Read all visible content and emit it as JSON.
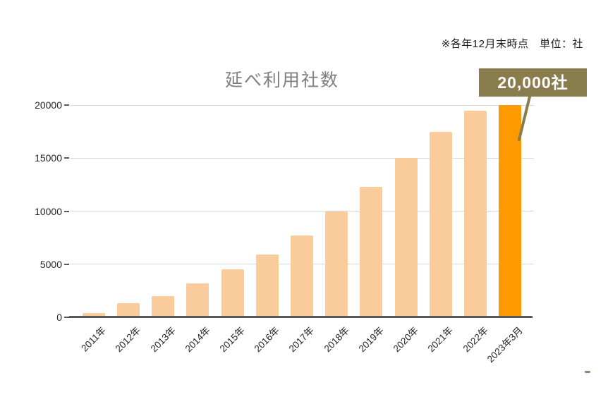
{
  "note": "※各年12月末時点　単位：社",
  "chart_data": {
    "type": "bar",
    "title": "延べ利用社数",
    "categories": [
      "2011年",
      "2012年",
      "2013年",
      "2014年",
      "2015年",
      "2016年",
      "2017年",
      "2018年",
      "2019年",
      "2020年",
      "2021年",
      "2022年",
      "2023年3月"
    ],
    "values": [
      400,
      1300,
      2000,
      3200,
      4500,
      5900,
      7700,
      10000,
      12300,
      15000,
      17500,
      19500,
      20000
    ],
    "yticks": [
      0,
      5000,
      10000,
      15000,
      20000
    ],
    "ylim": [
      0,
      20000
    ],
    "grid": true,
    "legend_position": "none",
    "xlabel": "",
    "ylabel": "",
    "bar_color": "#facc9b",
    "highlight": {
      "index": 12,
      "color": "#ff9900"
    },
    "callout": {
      "text": "20,000社",
      "bg_color": "#8a7d4d",
      "text_color": "#ffffff"
    }
  },
  "colors": {
    "title": "#7f7f7f",
    "gridline": "#d9d9d9",
    "axis_line": "#595959",
    "tick_label": "#262626",
    "note_text": "#1a1a1a"
  }
}
